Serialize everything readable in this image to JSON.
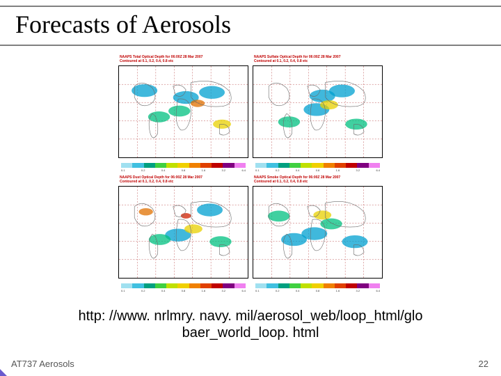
{
  "slide": {
    "title": "Forecasts of Aerosols",
    "url_line1": "http: //www. nrlmry. navy. mil/aerosol_web/loop_html/glo",
    "url_line2": "baer_world_loop. html",
    "footer_left": "AT737 Aerosols",
    "page_number": "22"
  },
  "charts": {
    "panels": [
      {
        "title_line1": "NAAPS Total Optical Depth for 06:00Z 28 Mar 2007",
        "title_line2": "Contoured at 0.1, 0.2, 0.4, 0.8 etc",
        "overlay_colors": [
          "#00a0d0",
          "#00c080",
          "#e8d000",
          "#e07000"
        ],
        "overlay_weights": [
          0.45,
          0.25,
          0.2,
          0.1
        ]
      },
      {
        "title_line1": "NAAPS Sulfate Optical Depth for 06:00Z 28 Mar 2007",
        "title_line2": "Contoured at 0.1, 0.2, 0.4, 0.8 etc",
        "overlay_colors": [
          "#00a0d0",
          "#00c080",
          "#e8d000"
        ],
        "overlay_weights": [
          0.5,
          0.3,
          0.2
        ]
      },
      {
        "title_line1": "NAAPS Dust Optical Depth for 06:00Z 28 Mar 2007",
        "title_line2": "Contoured at 0.1, 0.2, 0.4, 0.8 etc",
        "overlay_colors": [
          "#00a0d0",
          "#00c080",
          "#e8d000",
          "#e07000",
          "#d02000"
        ],
        "overlay_weights": [
          0.35,
          0.25,
          0.2,
          0.12,
          0.08
        ]
      },
      {
        "title_line1": "NAAPS Smoke Optical Depth for 06:00Z 28 Mar 2007",
        "title_line2": "Contoured at 0.1, 0.2, 0.4, 0.8 etc",
        "overlay_colors": [
          "#00a0d0",
          "#00c080",
          "#e8d000"
        ],
        "overlay_weights": [
          0.55,
          0.3,
          0.15
        ]
      }
    ],
    "colorbar": {
      "colors": [
        "#a0e0f0",
        "#40c0e0",
        "#00a080",
        "#40d040",
        "#c0e000",
        "#f0d000",
        "#f08000",
        "#e04000",
        "#c00000",
        "#800080",
        "#f080f0"
      ],
      "labels": [
        "0.1",
        "0.2",
        "0.4",
        "0.8",
        "1.6",
        "3.2",
        "6.4"
      ]
    },
    "map": {
      "grid_color": "#b03030",
      "coast_color": "#6a6a6a",
      "background": "#ffffff",
      "gridlines_lon": 7,
      "gridlines_lat": 5
    }
  },
  "style": {
    "title_fontsize": 36,
    "url_fontsize": 20,
    "footer_fontsize": 13,
    "rule_color": "#808080",
    "accent_color": "#6a5acd"
  }
}
